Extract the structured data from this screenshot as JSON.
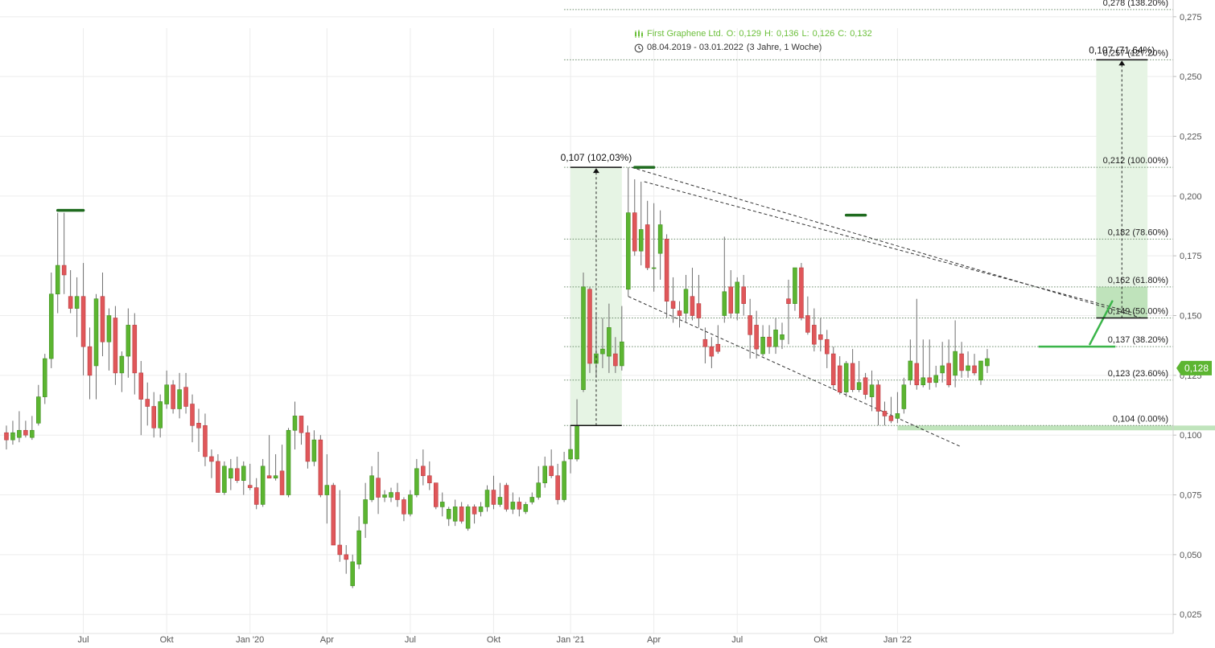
{
  "header": {
    "instrument_line": "First Graphene Ltd.",
    "ohlc": {
      "o_label": "O:",
      "o": "0,129",
      "h_label": "H:",
      "h": "0,136",
      "l_label": "L:",
      "l": "0,126",
      "c_label": "C:",
      "c": "0,132"
    },
    "range": "08.04.2019 - 03.01.2022",
    "range_duration": "(3 Jahre, 1 Woche)",
    "icons": {
      "candle": "candlestick-icon",
      "clock": "clock-icon"
    }
  },
  "chart_data": {
    "type": "candlestick",
    "interval": "weekly",
    "x_labels": [
      "Jul",
      "Okt",
      "Jan '20",
      "Apr",
      "Jul",
      "Okt",
      "Jan '21",
      "Apr",
      "Jul",
      "Okt",
      "Jan '22"
    ],
    "y_ticks": [
      "0,025",
      "0,050",
      "0,075",
      "0,100",
      "0,125",
      "0,150",
      "0,175",
      "0,200",
      "0,225",
      "0,250",
      "0,275"
    ],
    "y_tick_values": [
      0.025,
      0.05,
      0.075,
      0.1,
      0.125,
      0.15,
      0.175,
      0.2,
      0.225,
      0.25,
      0.275
    ],
    "ylim": [
      0.017,
      0.282
    ],
    "x_index_range": [
      -1,
      182
    ],
    "current_price": {
      "value": 0.128,
      "label": "0,128"
    },
    "colors": {
      "up": "#5cb531",
      "down": "#e0575a",
      "grid": "#ececec",
      "fib": "#6a8a6a",
      "accent": "#63c13f",
      "zone": "#e6f4e4"
    },
    "candles": [
      {
        "o": 0.101,
        "h": 0.104,
        "l": 0.094,
        "c": 0.098
      },
      {
        "o": 0.098,
        "h": 0.106,
        "l": 0.096,
        "c": 0.101
      },
      {
        "o": 0.099,
        "h": 0.11,
        "l": 0.097,
        "c": 0.102
      },
      {
        "o": 0.102,
        "h": 0.106,
        "l": 0.099,
        "c": 0.1
      },
      {
        "o": 0.099,
        "h": 0.108,
        "l": 0.098,
        "c": 0.102
      },
      {
        "o": 0.105,
        "h": 0.121,
        "l": 0.104,
        "c": 0.116
      },
      {
        "o": 0.116,
        "h": 0.134,
        "l": 0.113,
        "c": 0.132
      },
      {
        "o": 0.132,
        "h": 0.168,
        "l": 0.128,
        "c": 0.159
      },
      {
        "o": 0.159,
        "h": 0.193,
        "l": 0.151,
        "c": 0.171
      },
      {
        "o": 0.171,
        "h": 0.193,
        "l": 0.159,
        "c": 0.167
      },
      {
        "o": 0.158,
        "h": 0.169,
        "l": 0.151,
        "c": 0.153
      },
      {
        "o": 0.153,
        "h": 0.166,
        "l": 0.141,
        "c": 0.158
      },
      {
        "o": 0.158,
        "h": 0.172,
        "l": 0.125,
        "c": 0.137
      },
      {
        "o": 0.137,
        "h": 0.145,
        "l": 0.115,
        "c": 0.125
      },
      {
        "o": 0.129,
        "h": 0.159,
        "l": 0.115,
        "c": 0.157
      },
      {
        "o": 0.158,
        "h": 0.168,
        "l": 0.133,
        "c": 0.139
      },
      {
        "o": 0.139,
        "h": 0.153,
        "l": 0.127,
        "c": 0.15
      },
      {
        "o": 0.149,
        "h": 0.154,
        "l": 0.121,
        "c": 0.126
      },
      {
        "o": 0.126,
        "h": 0.135,
        "l": 0.118,
        "c": 0.133
      },
      {
        "o": 0.133,
        "h": 0.153,
        "l": 0.124,
        "c": 0.146
      },
      {
        "o": 0.146,
        "h": 0.151,
        "l": 0.117,
        "c": 0.126
      },
      {
        "o": 0.126,
        "h": 0.131,
        "l": 0.1,
        "c": 0.115
      },
      {
        "o": 0.115,
        "h": 0.122,
        "l": 0.104,
        "c": 0.112
      },
      {
        "o": 0.112,
        "h": 0.118,
        "l": 0.099,
        "c": 0.103
      },
      {
        "o": 0.103,
        "h": 0.117,
        "l": 0.099,
        "c": 0.114
      },
      {
        "o": 0.113,
        "h": 0.127,
        "l": 0.111,
        "c": 0.121
      },
      {
        "o": 0.121,
        "h": 0.123,
        "l": 0.109,
        "c": 0.111
      },
      {
        "o": 0.111,
        "h": 0.126,
        "l": 0.107,
        "c": 0.119
      },
      {
        "o": 0.12,
        "h": 0.126,
        "l": 0.109,
        "c": 0.112
      },
      {
        "o": 0.113,
        "h": 0.117,
        "l": 0.097,
        "c": 0.104
      },
      {
        "o": 0.105,
        "h": 0.111,
        "l": 0.093,
        "c": 0.103
      },
      {
        "o": 0.104,
        "h": 0.109,
        "l": 0.087,
        "c": 0.091
      },
      {
        "o": 0.091,
        "h": 0.094,
        "l": 0.082,
        "c": 0.089
      },
      {
        "o": 0.089,
        "h": 0.092,
        "l": 0.076,
        "c": 0.076
      },
      {
        "o": 0.076,
        "h": 0.089,
        "l": 0.075,
        "c": 0.087
      },
      {
        "o": 0.082,
        "h": 0.09,
        "l": 0.077,
        "c": 0.086
      },
      {
        "o": 0.086,
        "h": 0.091,
        "l": 0.08,
        "c": 0.081
      },
      {
        "o": 0.081,
        "h": 0.089,
        "l": 0.075,
        "c": 0.087
      },
      {
        "o": 0.079,
        "h": 0.088,
        "l": 0.077,
        "c": 0.078
      },
      {
        "o": 0.078,
        "h": 0.082,
        "l": 0.069,
        "c": 0.071
      },
      {
        "o": 0.071,
        "h": 0.09,
        "l": 0.07,
        "c": 0.087
      },
      {
        "o": 0.083,
        "h": 0.1,
        "l": 0.082,
        "c": 0.082
      },
      {
        "o": 0.082,
        "h": 0.092,
        "l": 0.081,
        "c": 0.083
      },
      {
        "o": 0.085,
        "h": 0.096,
        "l": 0.075,
        "c": 0.075
      },
      {
        "o": 0.075,
        "h": 0.103,
        "l": 0.074,
        "c": 0.102
      },
      {
        "o": 0.102,
        "h": 0.114,
        "l": 0.094,
        "c": 0.108
      },
      {
        "o": 0.108,
        "h": 0.108,
        "l": 0.096,
        "c": 0.101
      },
      {
        "o": 0.101,
        "h": 0.104,
        "l": 0.086,
        "c": 0.089
      },
      {
        "o": 0.089,
        "h": 0.102,
        "l": 0.087,
        "c": 0.098
      },
      {
        "o": 0.098,
        "h": 0.1,
        "l": 0.074,
        "c": 0.075
      },
      {
        "o": 0.075,
        "h": 0.092,
        "l": 0.063,
        "c": 0.079
      },
      {
        "o": 0.079,
        "h": 0.08,
        "l": 0.055,
        "c": 0.054
      },
      {
        "o": 0.054,
        "h": 0.077,
        "l": 0.047,
        "c": 0.05
      },
      {
        "o": 0.05,
        "h": 0.054,
        "l": 0.042,
        "c": 0.048
      },
      {
        "o": 0.037,
        "h": 0.05,
        "l": 0.036,
        "c": 0.047
      },
      {
        "o": 0.046,
        "h": 0.066,
        "l": 0.044,
        "c": 0.06
      },
      {
        "o": 0.063,
        "h": 0.08,
        "l": 0.057,
        "c": 0.073
      },
      {
        "o": 0.073,
        "h": 0.087,
        "l": 0.072,
        "c": 0.083
      },
      {
        "o": 0.082,
        "h": 0.093,
        "l": 0.067,
        "c": 0.074
      },
      {
        "o": 0.074,
        "h": 0.077,
        "l": 0.072,
        "c": 0.075
      },
      {
        "o": 0.074,
        "h": 0.078,
        "l": 0.072,
        "c": 0.076
      },
      {
        "o": 0.076,
        "h": 0.08,
        "l": 0.07,
        "c": 0.073
      },
      {
        "o": 0.073,
        "h": 0.074,
        "l": 0.064,
        "c": 0.067
      },
      {
        "o": 0.067,
        "h": 0.077,
        "l": 0.066,
        "c": 0.075
      },
      {
        "o": 0.075,
        "h": 0.09,
        "l": 0.074,
        "c": 0.086
      },
      {
        "o": 0.087,
        "h": 0.094,
        "l": 0.079,
        "c": 0.083
      },
      {
        "o": 0.083,
        "h": 0.089,
        "l": 0.077,
        "c": 0.08
      },
      {
        "o": 0.08,
        "h": 0.08,
        "l": 0.069,
        "c": 0.07
      },
      {
        "o": 0.07,
        "h": 0.076,
        "l": 0.066,
        "c": 0.072
      },
      {
        "o": 0.065,
        "h": 0.07,
        "l": 0.062,
        "c": 0.069
      },
      {
        "o": 0.064,
        "h": 0.073,
        "l": 0.062,
        "c": 0.07
      },
      {
        "o": 0.07,
        "h": 0.072,
        "l": 0.063,
        "c": 0.064
      },
      {
        "o": 0.061,
        "h": 0.071,
        "l": 0.06,
        "c": 0.07
      },
      {
        "o": 0.07,
        "h": 0.071,
        "l": 0.063,
        "c": 0.067
      },
      {
        "o": 0.068,
        "h": 0.072,
        "l": 0.066,
        "c": 0.07
      },
      {
        "o": 0.07,
        "h": 0.079,
        "l": 0.068,
        "c": 0.077
      },
      {
        "o": 0.077,
        "h": 0.083,
        "l": 0.069,
        "c": 0.071
      },
      {
        "o": 0.071,
        "h": 0.08,
        "l": 0.07,
        "c": 0.074
      },
      {
        "o": 0.079,
        "h": 0.08,
        "l": 0.068,
        "c": 0.069
      },
      {
        "o": 0.069,
        "h": 0.076,
        "l": 0.067,
        "c": 0.072
      },
      {
        "o": 0.072,
        "h": 0.074,
        "l": 0.066,
        "c": 0.069
      },
      {
        "o": 0.068,
        "h": 0.072,
        "l": 0.067,
        "c": 0.071
      },
      {
        "o": 0.072,
        "h": 0.076,
        "l": 0.071,
        "c": 0.074
      },
      {
        "o": 0.074,
        "h": 0.087,
        "l": 0.073,
        "c": 0.08
      },
      {
        "o": 0.08,
        "h": 0.091,
        "l": 0.078,
        "c": 0.087
      },
      {
        "o": 0.087,
        "h": 0.094,
        "l": 0.082,
        "c": 0.083
      },
      {
        "o": 0.083,
        "h": 0.088,
        "l": 0.071,
        "c": 0.073
      },
      {
        "o": 0.073,
        "h": 0.093,
        "l": 0.072,
        "c": 0.089
      },
      {
        "o": 0.09,
        "h": 0.104,
        "l": 0.084,
        "c": 0.094
      },
      {
        "o": 0.09,
        "h": 0.115,
        "l": 0.089,
        "c": 0.104
      },
      {
        "o": 0.119,
        "h": 0.168,
        "l": 0.118,
        "c": 0.162
      },
      {
        "o": 0.161,
        "h": 0.162,
        "l": 0.126,
        "c": 0.13
      },
      {
        "o": 0.13,
        "h": 0.151,
        "l": 0.124,
        "c": 0.134
      },
      {
        "o": 0.134,
        "h": 0.149,
        "l": 0.128,
        "c": 0.136
      },
      {
        "o": 0.133,
        "h": 0.155,
        "l": 0.126,
        "c": 0.145
      },
      {
        "o": 0.134,
        "h": 0.141,
        "l": 0.126,
        "c": 0.129
      },
      {
        "o": 0.129,
        "h": 0.154,
        "l": 0.127,
        "c": 0.139
      },
      {
        "o": 0.161,
        "h": 0.212,
        "l": 0.158,
        "c": 0.193
      },
      {
        "o": 0.193,
        "h": 0.207,
        "l": 0.175,
        "c": 0.177
      },
      {
        "o": 0.177,
        "h": 0.206,
        "l": 0.171,
        "c": 0.186
      },
      {
        "o": 0.188,
        "h": 0.198,
        "l": 0.169,
        "c": 0.17
      },
      {
        "o": 0.17,
        "h": 0.197,
        "l": 0.16,
        "c": 0.17
      },
      {
        "o": 0.176,
        "h": 0.194,
        "l": 0.165,
        "c": 0.188
      },
      {
        "o": 0.182,
        "h": 0.184,
        "l": 0.149,
        "c": 0.156
      },
      {
        "o": 0.156,
        "h": 0.166,
        "l": 0.147,
        "c": 0.153
      },
      {
        "o": 0.152,
        "h": 0.156,
        "l": 0.145,
        "c": 0.15
      },
      {
        "o": 0.151,
        "h": 0.167,
        "l": 0.147,
        "c": 0.161
      },
      {
        "o": 0.158,
        "h": 0.17,
        "l": 0.148,
        "c": 0.15
      },
      {
        "o": 0.155,
        "h": 0.167,
        "l": 0.145,
        "c": 0.149
      },
      {
        "o": 0.14,
        "h": 0.145,
        "l": 0.13,
        "c": 0.137
      },
      {
        "o": 0.137,
        "h": 0.141,
        "l": 0.128,
        "c": 0.133
      },
      {
        "o": 0.138,
        "h": 0.146,
        "l": 0.134,
        "c": 0.135
      },
      {
        "o": 0.15,
        "h": 0.183,
        "l": 0.147,
        "c": 0.16
      },
      {
        "o": 0.162,
        "h": 0.169,
        "l": 0.149,
        "c": 0.151
      },
      {
        "o": 0.151,
        "h": 0.166,
        "l": 0.148,
        "c": 0.164
      },
      {
        "o": 0.162,
        "h": 0.167,
        "l": 0.15,
        "c": 0.155
      },
      {
        "o": 0.15,
        "h": 0.157,
        "l": 0.132,
        "c": 0.142
      },
      {
        "o": 0.146,
        "h": 0.152,
        "l": 0.132,
        "c": 0.136
      },
      {
        "o": 0.134,
        "h": 0.146,
        "l": 0.133,
        "c": 0.141
      },
      {
        "o": 0.141,
        "h": 0.146,
        "l": 0.134,
        "c": 0.137
      },
      {
        "o": 0.137,
        "h": 0.149,
        "l": 0.134,
        "c": 0.144
      },
      {
        "o": 0.14,
        "h": 0.147,
        "l": 0.136,
        "c": 0.142
      },
      {
        "o": 0.157,
        "h": 0.165,
        "l": 0.138,
        "c": 0.155
      },
      {
        "o": 0.155,
        "h": 0.17,
        "l": 0.152,
        "c": 0.17
      },
      {
        "o": 0.17,
        "h": 0.172,
        "l": 0.148,
        "c": 0.149
      },
      {
        "o": 0.15,
        "h": 0.158,
        "l": 0.142,
        "c": 0.143
      },
      {
        "o": 0.146,
        "h": 0.153,
        "l": 0.135,
        "c": 0.138
      },
      {
        "o": 0.142,
        "h": 0.149,
        "l": 0.135,
        "c": 0.14
      },
      {
        "o": 0.14,
        "h": 0.144,
        "l": 0.128,
        "c": 0.134
      },
      {
        "o": 0.134,
        "h": 0.137,
        "l": 0.119,
        "c": 0.121
      },
      {
        "o": 0.129,
        "h": 0.133,
        "l": 0.117,
        "c": 0.118
      },
      {
        "o": 0.118,
        "h": 0.131,
        "l": 0.116,
        "c": 0.13
      },
      {
        "o": 0.13,
        "h": 0.136,
        "l": 0.118,
        "c": 0.119
      },
      {
        "o": 0.119,
        "h": 0.131,
        "l": 0.118,
        "c": 0.122
      },
      {
        "o": 0.124,
        "h": 0.126,
        "l": 0.115,
        "c": 0.117
      },
      {
        "o": 0.116,
        "h": 0.127,
        "l": 0.11,
        "c": 0.121
      },
      {
        "o": 0.121,
        "h": 0.123,
        "l": 0.104,
        "c": 0.11
      },
      {
        "o": 0.11,
        "h": 0.114,
        "l": 0.104,
        "c": 0.108
      },
      {
        "o": 0.108,
        "h": 0.116,
        "l": 0.105,
        "c": 0.106
      },
      {
        "o": 0.107,
        "h": 0.118,
        "l": 0.105,
        "c": 0.109
      },
      {
        "o": 0.111,
        "h": 0.124,
        "l": 0.109,
        "c": 0.121
      },
      {
        "o": 0.123,
        "h": 0.14,
        "l": 0.121,
        "c": 0.131
      },
      {
        "o": 0.13,
        "h": 0.157,
        "l": 0.119,
        "c": 0.121
      },
      {
        "o": 0.121,
        "h": 0.14,
        "l": 0.12,
        "c": 0.124
      },
      {
        "o": 0.124,
        "h": 0.14,
        "l": 0.119,
        "c": 0.122
      },
      {
        "o": 0.122,
        "h": 0.129,
        "l": 0.12,
        "c": 0.125
      },
      {
        "o": 0.126,
        "h": 0.139,
        "l": 0.122,
        "c": 0.129
      },
      {
        "o": 0.13,
        "h": 0.14,
        "l": 0.12,
        "c": 0.121
      },
      {
        "o": 0.125,
        "h": 0.148,
        "l": 0.12,
        "c": 0.135
      },
      {
        "o": 0.134,
        "h": 0.139,
        "l": 0.124,
        "c": 0.127
      },
      {
        "o": 0.127,
        "h": 0.135,
        "l": 0.124,
        "c": 0.129
      },
      {
        "o": 0.129,
        "h": 0.134,
        "l": 0.125,
        "c": 0.126
      },
      {
        "o": 0.123,
        "h": 0.131,
        "l": 0.121,
        "c": 0.131
      },
      {
        "o": 0.129,
        "h": 0.136,
        "l": 0.126,
        "c": 0.132
      }
    ],
    "fibonacci": [
      {
        "value": 0.278,
        "label": "0,278 (138.20%)"
      },
      {
        "value": 0.257,
        "label": "0,257 (127.20%)"
      },
      {
        "value": 0.212,
        "label": "0,212 (100.00%)"
      },
      {
        "value": 0.182,
        "label": "0,182 (78.60%)"
      },
      {
        "value": 0.162,
        "label": "0,162 (61.80%)"
      },
      {
        "value": 0.149,
        "label": "0,149 (50.00%)"
      },
      {
        "value": 0.137,
        "label": "0,137 (38.20%)"
      },
      {
        "value": 0.123,
        "label": "0,123 (23.60%)"
      },
      {
        "value": 0.104,
        "label": "0,104 (0.00%)"
      }
    ],
    "measurements": [
      {
        "label": "0,107 (102,03%)",
        "from": 0.104,
        "to": 0.212,
        "x_start": 88,
        "x_end": 96
      },
      {
        "label": "0,107 (71,64%)",
        "from": 0.149,
        "to": 0.257,
        "x_start": 170,
        "x_end": 178
      }
    ],
    "trendlines": [
      {
        "x1": 97.5,
        "y1": 0.212,
        "x2": 177,
        "y2": 0.149
      },
      {
        "x1": 99.5,
        "y1": 0.206,
        "x2": 176,
        "y2": 0.151
      },
      {
        "x1": 97.0,
        "y1": 0.158,
        "x2": 149,
        "y2": 0.095
      }
    ],
    "annotations": {
      "swing_high_markers": [
        {
          "x_start": 8,
          "x_end": 12,
          "value": 0.194
        },
        {
          "x_start": 98,
          "x_end": 101,
          "value": 0.212
        },
        {
          "x_start": 131,
          "x_end": 134,
          "value": 0.192
        }
      ],
      "support_zone": {
        "x_start": 139,
        "x_end": 199,
        "from": 0.102,
        "to": 0.104
      },
      "breakout_target_line": {
        "x_start": 161,
        "x_end": 173,
        "value": 0.137
      },
      "breakout_arrow": {
        "x1": 169,
        "y1": 0.138,
        "x2": 172.5,
        "y2": 0.156
      }
    }
  }
}
